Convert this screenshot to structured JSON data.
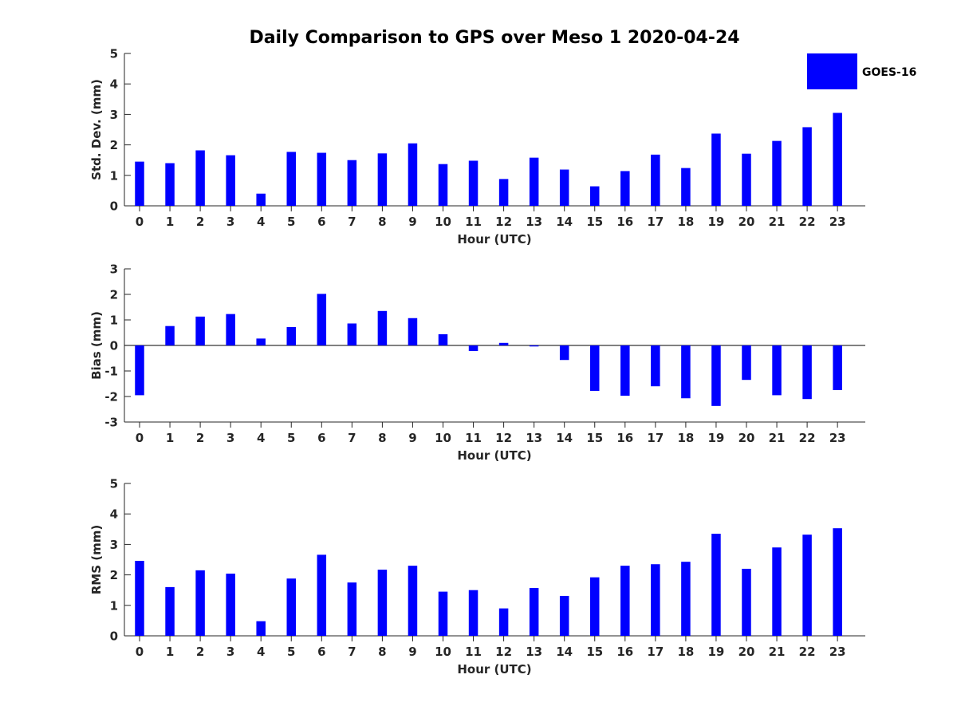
{
  "colors": {
    "bar": "#0000ff",
    "axis": "#262626",
    "background": "#ffffff"
  },
  "chart_data": {
    "type": "bar",
    "title": "Daily Comparison to GPS over Meso 1 2020-04-24",
    "legend": {
      "label": "GOES-16",
      "placement": "top-right"
    },
    "categories": [
      "0",
      "1",
      "2",
      "3",
      "4",
      "5",
      "6",
      "7",
      "8",
      "9",
      "10",
      "11",
      "12",
      "13",
      "14",
      "15",
      "16",
      "17",
      "18",
      "19",
      "20",
      "21",
      "22",
      "23"
    ],
    "panels": [
      {
        "id": "std",
        "ylabel": "Std. Dev. (mm)",
        "xlabel": "Hour (UTC)",
        "ylim": [
          0,
          5
        ],
        "yticks": [
          "0",
          "1",
          "2",
          "3",
          "4",
          "5"
        ],
        "series": [
          {
            "name": "GOES-16",
            "values": [
              1.45,
              1.4,
              1.82,
              1.66,
              0.4,
              1.77,
              1.74,
              1.5,
              1.72,
              2.05,
              1.37,
              1.48,
              0.88,
              1.58,
              1.19,
              0.64,
              1.14,
              1.68,
              1.24,
              2.37,
              1.71,
              2.13,
              2.58,
              3.05
            ]
          }
        ]
      },
      {
        "id": "bias",
        "ylabel": "Bias (mm)",
        "xlabel": "Hour (UTC)",
        "ylim": [
          -3,
          3
        ],
        "yticks": [
          "-3",
          "-2",
          "-1",
          "0",
          "1",
          "2",
          "3"
        ],
        "series": [
          {
            "name": "GOES-16",
            "values": [
              -1.95,
              0.76,
              1.13,
              1.23,
              0.27,
              0.72,
              2.02,
              0.86,
              1.35,
              1.07,
              0.44,
              -0.22,
              0.1,
              -0.04,
              -0.57,
              -1.78,
              -1.97,
              -1.6,
              -2.07,
              -2.37,
              -1.35,
              -1.95,
              -2.1,
              -1.75
            ]
          }
        ]
      },
      {
        "id": "rms",
        "ylabel": "RMS (mm)",
        "xlabel": "Hour (UTC)",
        "ylim": [
          0,
          5
        ],
        "yticks": [
          "0",
          "1",
          "2",
          "3",
          "4",
          "5"
        ],
        "series": [
          {
            "name": "GOES-16",
            "values": [
              2.46,
              1.6,
              2.15,
              2.04,
              0.48,
              1.88,
              2.66,
              1.75,
              2.17,
              2.3,
              1.45,
              1.5,
              0.9,
              1.57,
              1.31,
              1.92,
              2.3,
              2.35,
              2.43,
              3.35,
              2.2,
              2.9,
              3.32,
              3.53
            ]
          }
        ]
      }
    ]
  }
}
